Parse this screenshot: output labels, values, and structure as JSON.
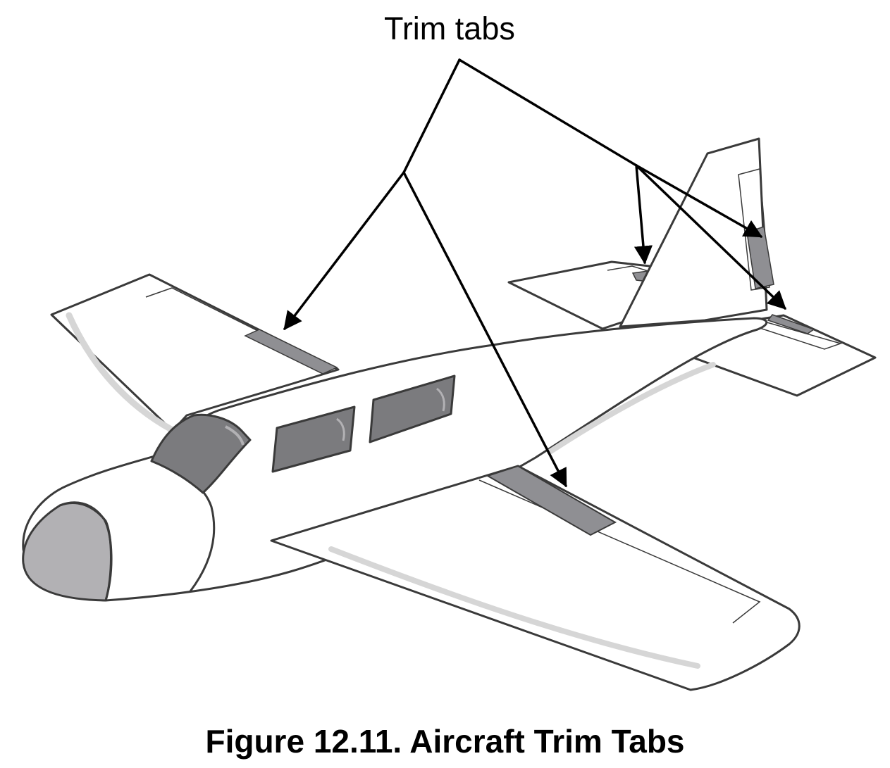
{
  "diagram": {
    "callout_label": "Trim tabs",
    "caption": "Figure 12.11. Aircraft Trim Tabs"
  },
  "colors": {
    "outline": "#3a3a3a",
    "airframe_fill": "#ffffff",
    "trim_tab_fill": "#8f8f93",
    "window_fill": "#7b7b7e",
    "nose_fill": "#b2b1b4",
    "highlight": "#d6d6d6",
    "arrow": "#000000"
  }
}
